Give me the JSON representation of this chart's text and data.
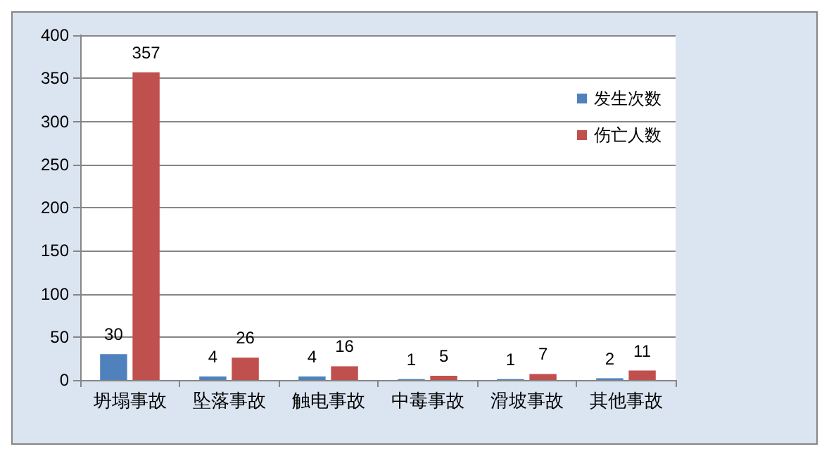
{
  "chart_data": {
    "type": "bar",
    "categories": [
      "坍塌事故",
      "坠落事故",
      "触电事故",
      "中毒事故",
      "滑坡事故",
      "其他事故"
    ],
    "series": [
      {
        "name": "发生次数",
        "color": "#4f81bd",
        "values": [
          30,
          4,
          4,
          1,
          1,
          2
        ]
      },
      {
        "name": "伤亡人数",
        "color": "#c0504d",
        "values": [
          357,
          26,
          16,
          5,
          7,
          11
        ]
      }
    ],
    "ylim": [
      0,
      400
    ],
    "yticks": [
      0,
      50,
      100,
      150,
      200,
      250,
      300,
      350,
      400
    ],
    "grid": "y",
    "legend": "top right",
    "data_labels": true
  }
}
